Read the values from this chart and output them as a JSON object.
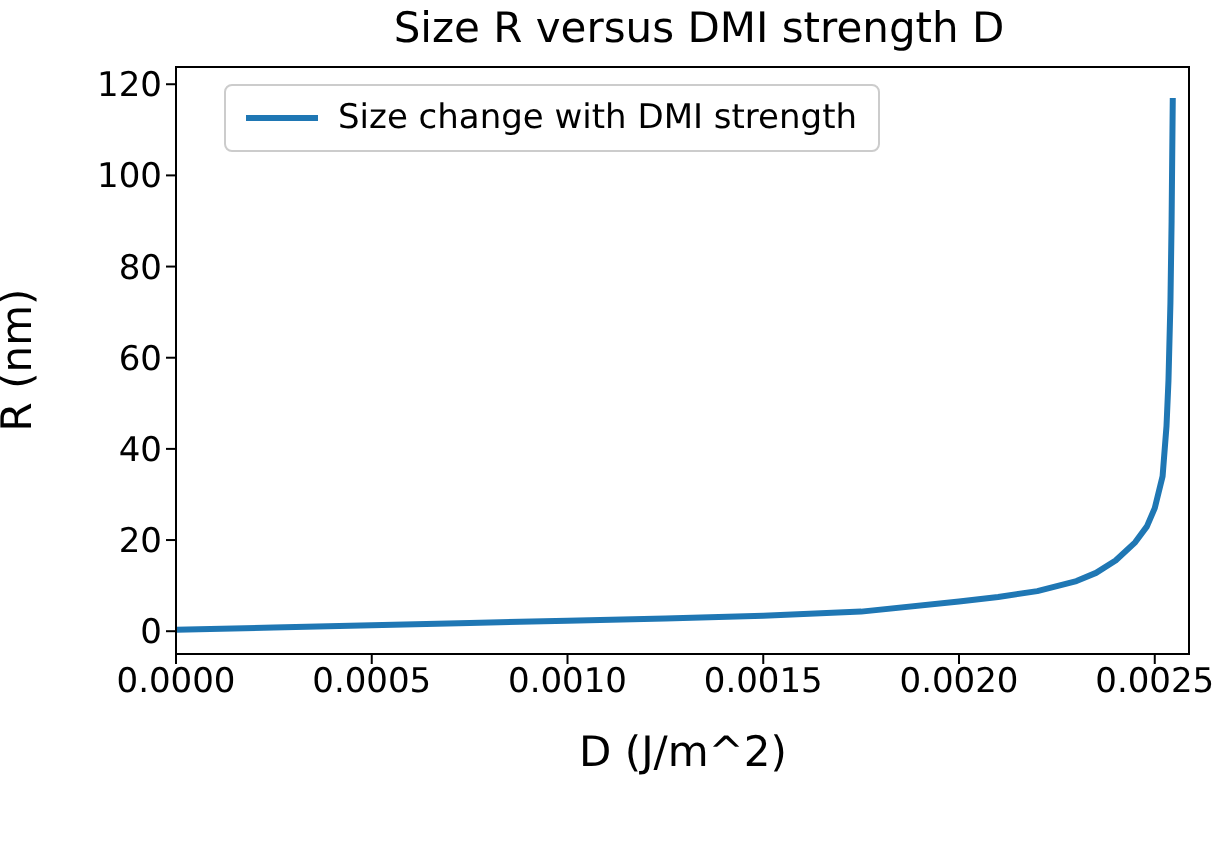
{
  "chart_data": {
    "type": "line",
    "title": "Size R versus DMI strength D",
    "xlabel": "D (J/m^2)",
    "ylabel": "R (nm)",
    "x": [
      0,
      0.00025,
      0.0005,
      0.00075,
      0.001,
      0.00125,
      0.0015,
      0.00175,
      0.002,
      0.0021,
      0.0022,
      0.0023,
      0.00235,
      0.0024,
      0.00245,
      0.00248,
      0.0025,
      0.00252,
      0.00253,
      0.002535,
      0.00254,
      0.002543,
      0.002546
    ],
    "series": [
      {
        "name": "Size change with DMI strength",
        "color": "#1f77b4",
        "values": [
          0.3,
          0.8,
          1.3,
          1.8,
          2.3,
          2.8,
          3.4,
          4.3,
          6.5,
          7.5,
          8.8,
          11,
          12.8,
          15.5,
          19.5,
          23,
          27,
          34,
          45,
          55,
          72,
          90,
          117
        ]
      }
    ],
    "xlim": [
      0,
      0.00259
    ],
    "xticks": [
      {
        "value": 0,
        "label": "0.0000"
      },
      {
        "value": 0.0005,
        "label": "0.0005"
      },
      {
        "value": 0.001,
        "label": "0.0010"
      },
      {
        "value": 0.0015,
        "label": "0.0015"
      },
      {
        "value": 0.002,
        "label": "0.0020"
      },
      {
        "value": 0.0025,
        "label": "0.0025"
      }
    ],
    "ylim": [
      -5,
      124
    ],
    "yticks": [
      0,
      20,
      40,
      60,
      80,
      100,
      120
    ],
    "legend": "top left",
    "grid": false,
    "marker": "none",
    "line_style": "solid"
  }
}
